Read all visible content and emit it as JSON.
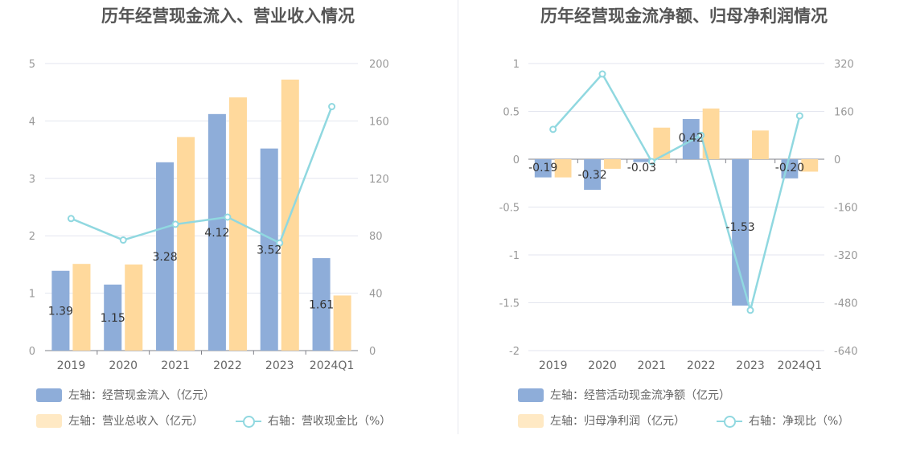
{
  "colors": {
    "bar1": "#8eadd9",
    "bar2": "#ffd99c",
    "line": "#90d8e0",
    "grid": "#e3e6ef"
  },
  "chart_data": [
    {
      "type": "bar",
      "title": "历年经营现金流入、营业收入情况",
      "categories": [
        "2019",
        "2020",
        "2021",
        "2022",
        "2023",
        "2024Q1"
      ],
      "series": [
        {
          "name": "左轴：经营现金流入（亿元）",
          "axis": "left",
          "values": [
            1.39,
            1.15,
            3.28,
            4.12,
            3.52,
            1.61
          ],
          "labels": [
            "1.39",
            "1.15",
            "3.28",
            "4.12",
            "3.52",
            "1.61"
          ]
        },
        {
          "name": "左轴：营业总收入（亿元）",
          "axis": "left",
          "values": [
            1.51,
            1.5,
            3.72,
            4.41,
            4.72,
            0.96
          ]
        },
        {
          "name": "右轴：营收现金比（%）",
          "axis": "right",
          "type": "line",
          "values": [
            92,
            77,
            88,
            93,
            75,
            170
          ]
        }
      ],
      "left_axis": {
        "min": 0,
        "max": 5,
        "ticks": [
          "0",
          "1",
          "2",
          "3",
          "4",
          "5"
        ]
      },
      "right_axis": {
        "min": 0,
        "max": 200,
        "ticks": [
          "0",
          "40",
          "80",
          "120",
          "160",
          "200"
        ]
      }
    },
    {
      "type": "bar",
      "title": "历年经营现金流净额、归母净利润情况",
      "categories": [
        "2019",
        "2020",
        "2021",
        "2022",
        "2023",
        "2024Q1"
      ],
      "series": [
        {
          "name": "左轴：经营活动现金流净额（亿元）",
          "axis": "left",
          "values": [
            -0.19,
            -0.32,
            -0.03,
            0.42,
            -1.53,
            -0.2
          ],
          "labels": [
            "-0.19",
            "-0.32",
            "-0.03",
            "0.42",
            "-1.53",
            "-0.20"
          ]
        },
        {
          "name": "左轴：归母净利润（亿元）",
          "axis": "left",
          "values": [
            -0.19,
            -0.1,
            0.33,
            0.53,
            0.3,
            -0.13
          ]
        },
        {
          "name": "右轴：净现比（%）",
          "axis": "right",
          "type": "line",
          "values": [
            100,
            285,
            -8,
            80,
            -505,
            145
          ]
        }
      ],
      "left_axis": {
        "min": -2,
        "max": 1,
        "ticks": [
          "-2",
          "-1.5",
          "-1",
          "-0.5",
          "0",
          "0.5",
          "1"
        ]
      },
      "right_axis": {
        "min": -640,
        "max": 320,
        "ticks": [
          "-640",
          "-480",
          "-320",
          "-160",
          "0",
          "160",
          "320"
        ]
      }
    }
  ]
}
